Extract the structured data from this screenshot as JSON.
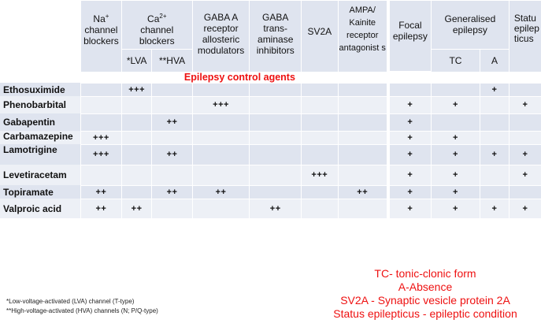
{
  "header": {
    "na": "Na",
    "na_sup": "+",
    "na_rest": "channel blockers",
    "ca": "Ca",
    "ca_sup": "2+",
    "ca_rest": "channel blockers",
    "gaba_a": "GABA A",
    "gaba_a_rest": "receptor allosteric modulators",
    "gaba_t": "GABA",
    "gaba_t_rest": "trans- aminase inhibitors",
    "sv2a": "SV2A",
    "ampa": "AMPA/",
    "ampa_rest": "Kainite receptor antagonist s",
    "focal": "Focal epilepsy",
    "gen": "Generalised epilepsy",
    "status": "Statu epilep ticus",
    "lva": "*LVA",
    "hva": "**HVA",
    "tc": "TC",
    "a": "A"
  },
  "section_title": "Epilepsy control agents",
  "rows": [
    {
      "name": "Ethosuximide",
      "cells": [
        "",
        "+++",
        "",
        "",
        "",
        "",
        "",
        "",
        "",
        "+",
        ""
      ]
    },
    {
      "name": "Phenobarbital",
      "cells": [
        "",
        "",
        "",
        "+++",
        "",
        "",
        "",
        "+",
        "+",
        "",
        "+"
      ]
    },
    {
      "name": "Gabapentin",
      "cells": [
        "",
        "",
        "++",
        "",
        "",
        "",
        "",
        "+",
        "",
        "",
        ""
      ]
    },
    {
      "name": "Carbamazepine",
      "cells": [
        "+++",
        "",
        "",
        "",
        "",
        "",
        "",
        "+",
        "+",
        "",
        ""
      ]
    },
    {
      "name": "Lamotrigine",
      "cells": [
        "+++",
        "",
        "++",
        "",
        "",
        "",
        "",
        "+",
        "+",
        "+",
        "+"
      ]
    },
    {
      "name": "Levetiracetam",
      "cells": [
        "",
        "",
        "",
        "",
        "",
        "+++",
        "",
        "+",
        "+",
        "",
        "+"
      ]
    },
    {
      "name": "Topiramate",
      "cells": [
        "++",
        "",
        "++",
        "++",
        "",
        "",
        "++",
        "+",
        "+",
        "",
        ""
      ]
    },
    {
      "name": "Valproic acid",
      "cells": [
        "++",
        "++",
        "",
        "",
        "++",
        "",
        "",
        "+",
        "+",
        "+",
        "+"
      ]
    }
  ],
  "footnotes": [
    "*Low-voltage-activated (LVA) channel (T-type)",
    "**High-voltage-activated (HVA) channels (N; P/Q-type)"
  ],
  "legend": [
    "TC- tonic-clonic form",
    "A-Absence",
    "SV2A - Synaptic vesicle protein 2A",
    "Status epilepticus - epileptic condition"
  ]
}
